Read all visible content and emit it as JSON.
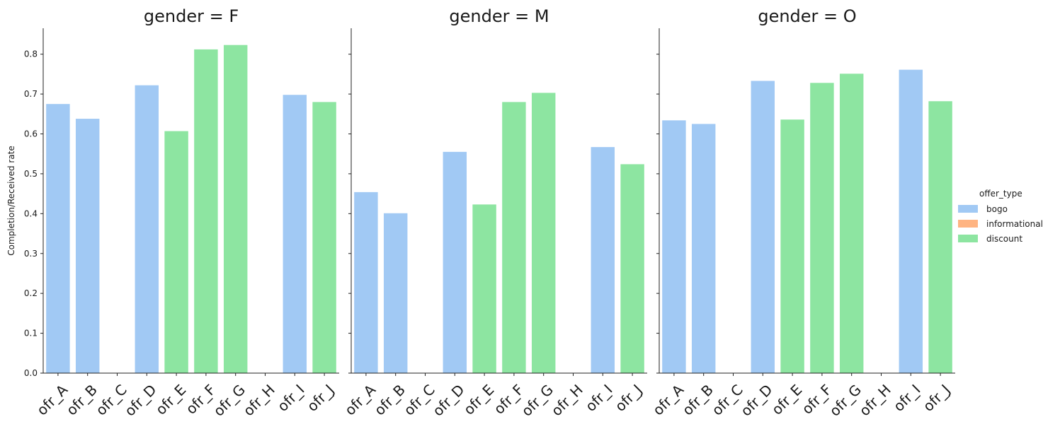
{
  "chart_data": {
    "type": "bar",
    "ylabel": "Completion/Received rate",
    "ylim": [
      0,
      0.865
    ],
    "yticks": [
      "0.0",
      "0.1",
      "0.2",
      "0.3",
      "0.4",
      "0.5",
      "0.6",
      "0.7",
      "0.8"
    ],
    "categories": [
      "ofr_A",
      "ofr_B",
      "ofr_C",
      "ofr_D",
      "ofr_E",
      "ofr_F",
      "ofr_G",
      "ofr_H",
      "ofr_I",
      "ofr_J"
    ],
    "category_type": [
      "bogo",
      "bogo",
      "informational",
      "bogo",
      "discount",
      "discount",
      "discount",
      "informational",
      "bogo",
      "discount"
    ],
    "legend": {
      "title": "offer_type",
      "placement": "right",
      "entries": [
        {
          "label": "bogo",
          "color": "#a1c9f4"
        },
        {
          "label": "informational",
          "color": "#ffb482"
        },
        {
          "label": "discount",
          "color": "#8de5a1"
        }
      ]
    },
    "panels": [
      {
        "title": "gender = F",
        "values": [
          0.675,
          0.638,
          null,
          0.722,
          0.607,
          0.812,
          0.823,
          null,
          0.698,
          0.68
        ]
      },
      {
        "title": "gender = M",
        "values": [
          0.454,
          0.401,
          null,
          0.555,
          0.423,
          0.68,
          0.703,
          null,
          0.567,
          0.524
        ]
      },
      {
        "title": "gender = O",
        "values": [
          0.634,
          0.625,
          null,
          0.733,
          0.636,
          0.728,
          0.751,
          null,
          0.761,
          0.682
        ]
      }
    ],
    "grid": false
  }
}
